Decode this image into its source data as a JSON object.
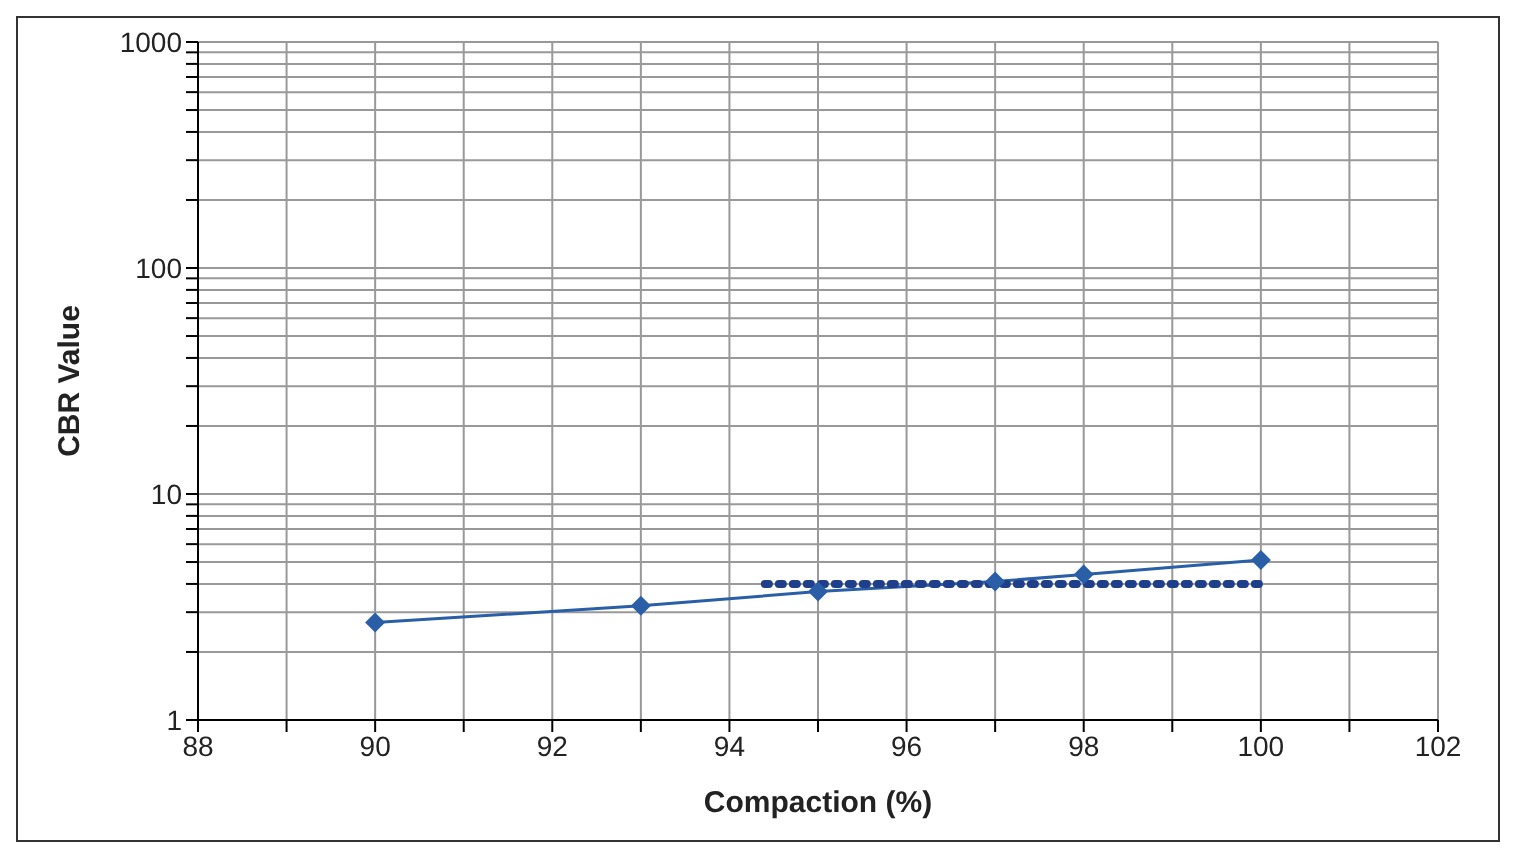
{
  "chart_data": {
    "type": "line",
    "xlabel": "Compaction (%)",
    "ylabel": "CBR Value",
    "log": "y",
    "grid": true,
    "xlim": [
      88,
      102
    ],
    "xticks": [
      88,
      {
        "value": 89,
        "label": null
      },
      90,
      {
        "value": 91,
        "label": null
      },
      92,
      {
        "value": 93,
        "label": null
      },
      94,
      {
        "value": 95,
        "label": null
      },
      96,
      {
        "value": 97,
        "label": null
      },
      98,
      {
        "value": 99,
        "label": null
      },
      100,
      {
        "value": 101,
        "label": null
      },
      102
    ],
    "ylim": [
      1,
      1000
    ],
    "yticks": [
      1,
      {
        "value": 2,
        "label": null
      },
      {
        "value": 3,
        "label": null
      },
      {
        "value": 4,
        "label": null
      },
      {
        "value": 5,
        "label": null
      },
      {
        "value": 6,
        "label": null
      },
      {
        "value": 7,
        "label": null
      },
      {
        "value": 8,
        "label": null
      },
      {
        "value": 9,
        "label": null
      },
      10,
      {
        "value": 20,
        "label": null
      },
      {
        "value": 30,
        "label": null
      },
      {
        "value": 40,
        "label": null
      },
      {
        "value": 50,
        "label": null
      },
      {
        "value": 60,
        "label": null
      },
      {
        "value": 70,
        "label": null
      },
      {
        "value": 80,
        "label": null
      },
      {
        "value": 90,
        "label": null
      },
      100,
      {
        "value": 200,
        "label": null
      },
      {
        "value": 300,
        "label": null
      },
      {
        "value": 400,
        "label": null
      },
      {
        "value": 500,
        "label": null
      },
      {
        "value": 600,
        "label": null
      },
      {
        "value": 700,
        "label": null
      },
      {
        "value": 800,
        "label": null
      },
      {
        "value": 900,
        "label": null
      },
      1000
    ],
    "series": [
      {
        "type": "line",
        "color": "#2a5fa8",
        "marker": "diamond",
        "line_style": "solid",
        "x": [
          90,
          93,
          95,
          97,
          98,
          100
        ],
        "values": [
          2.7,
          3.2,
          3.7,
          4.1,
          4.4,
          5.1
        ]
      },
      {
        "type": "line",
        "color": "#1f3f8a",
        "marker": "none",
        "line_style": "dotted",
        "x": [
          94.4,
          100
        ],
        "values": [
          4.0,
          4.0
        ]
      }
    ]
  }
}
